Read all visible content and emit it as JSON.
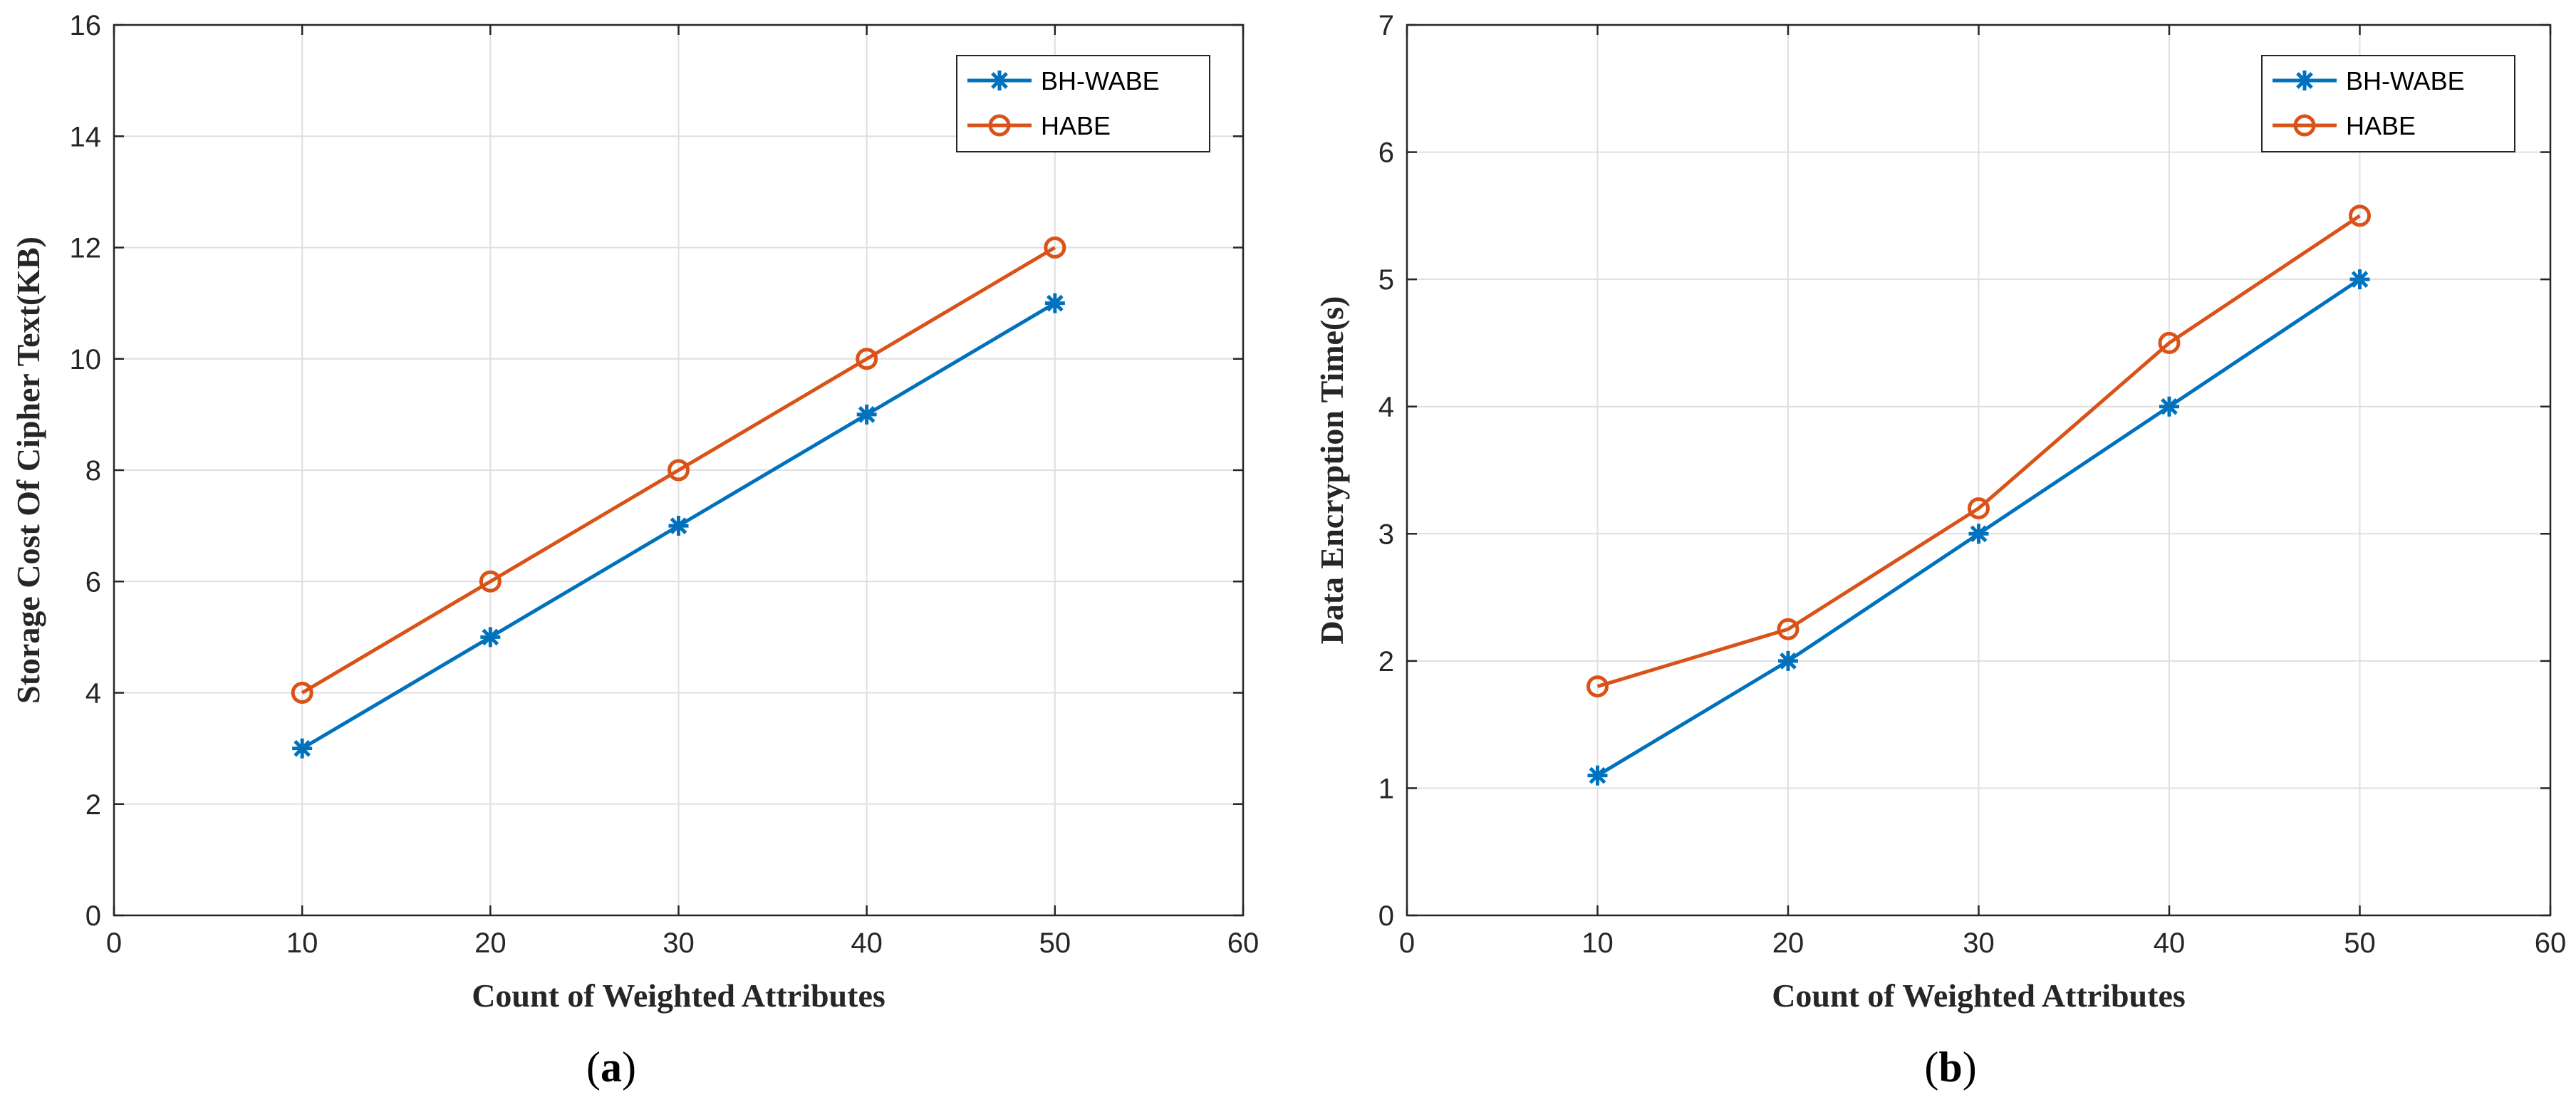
{
  "chart_data": [
    {
      "type": "line",
      "panel_caption": "(a)",
      "caption_letter": "a",
      "title": "",
      "xlabel": "Count of Weighted Attributes",
      "ylabel": "Storage Cost Of Cipher Text(KB)",
      "xlim": [
        0,
        60
      ],
      "ylim": [
        0,
        16
      ],
      "xticks": [
        0,
        10,
        20,
        30,
        40,
        50,
        60
      ],
      "yticks": [
        0,
        2,
        4,
        6,
        8,
        10,
        12,
        14,
        16
      ],
      "grid": true,
      "legend_position": "top-right",
      "x": [
        10,
        20,
        30,
        40,
        50
      ],
      "series": [
        {
          "name": "BH-WABE",
          "values": [
            3,
            5,
            7,
            9,
            11
          ],
          "color": "#0072BD",
          "marker": "asterisk"
        },
        {
          "name": "HABE",
          "values": [
            4,
            6,
            8,
            10,
            12
          ],
          "color": "#D95319",
          "marker": "circle"
        }
      ]
    },
    {
      "type": "line",
      "panel_caption": "(b)",
      "caption_letter": "b",
      "title": "",
      "xlabel": "Count of Weighted Attributes",
      "ylabel": "Data Encryption Time(s)",
      "xlim": [
        0,
        60
      ],
      "ylim": [
        0,
        7
      ],
      "xticks": [
        0,
        10,
        20,
        30,
        40,
        50,
        60
      ],
      "yticks": [
        0,
        1,
        2,
        3,
        4,
        5,
        6,
        7
      ],
      "grid": true,
      "legend_position": "top-right",
      "x": [
        10,
        20,
        30,
        40,
        50
      ],
      "series": [
        {
          "name": "BH-WABE",
          "values": [
            1.1,
            2.0,
            3.0,
            4.0,
            5.0
          ],
          "color": "#0072BD",
          "marker": "asterisk"
        },
        {
          "name": "HABE",
          "values": [
            1.8,
            2.25,
            3.2,
            4.5,
            5.5
          ],
          "color": "#D95319",
          "marker": "circle"
        }
      ]
    }
  ]
}
